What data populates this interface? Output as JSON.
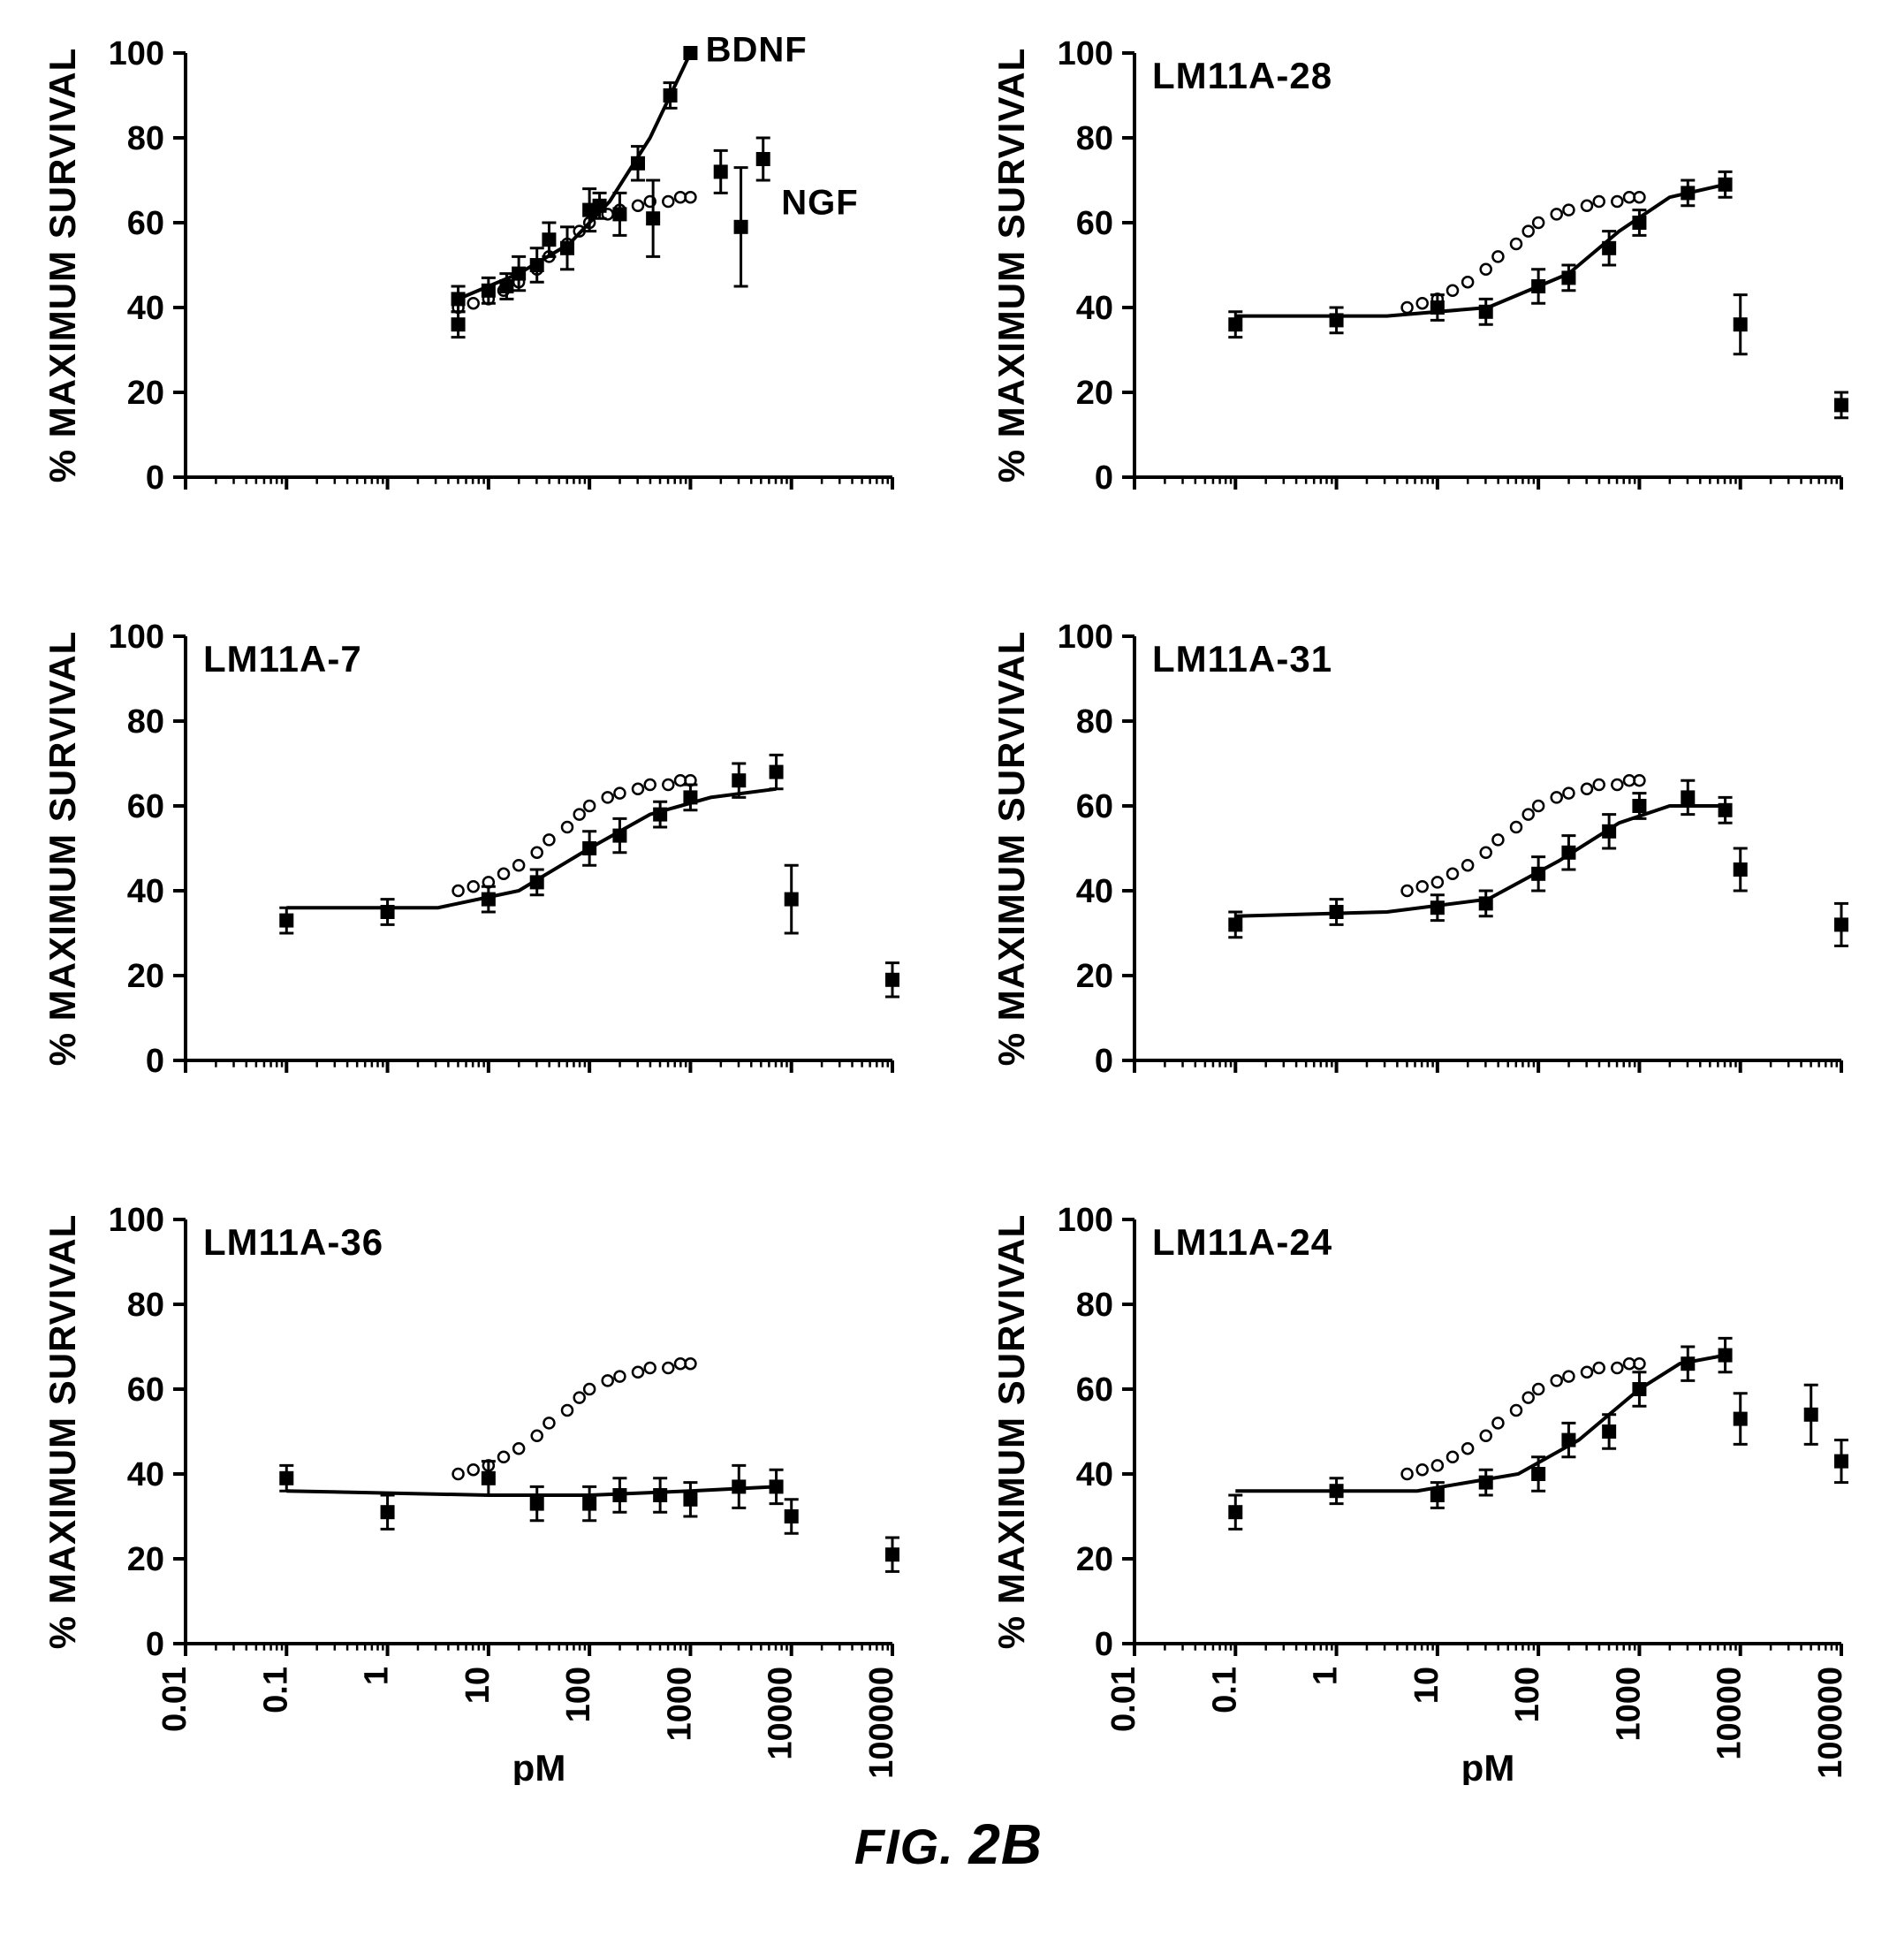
{
  "figure_caption_prefix": "FIG.",
  "figure_caption_num": "2B",
  "global": {
    "background_color": "#ffffff",
    "axis_color": "#000000",
    "axis_width": 4,
    "tick_length": 14,
    "ylabel": "% MAXIMUM SURVIVAL",
    "xlabel": "pM",
    "ylim": [
      0,
      100
    ],
    "yticks": [
      0,
      20,
      40,
      60,
      80,
      100
    ],
    "x_log_min": -2,
    "x_log_max": 5,
    "xticks_log": [
      -2,
      -1,
      0,
      1,
      2,
      3,
      4,
      5
    ],
    "xtick_labels": [
      "0.01",
      "0.1",
      "1",
      "10",
      "100",
      "1000",
      "10000",
      "100000"
    ],
    "marker_fill": "#000000",
    "marker_size": 16,
    "open_marker_stroke": "#000000",
    "open_marker_radius": 6,
    "open_marker_stroke_width": 2.5,
    "errorbar_width": 3,
    "errorbar_cap": 16,
    "line_width": 4,
    "font_color": "#000000"
  },
  "ngf_reference": {
    "comment": "open-circle NGF dose-response overlay shown on every panel",
    "points": [
      {
        "logx": 0.7,
        "y": 40
      },
      {
        "logx": 0.85,
        "y": 41
      },
      {
        "logx": 1.0,
        "y": 42
      },
      {
        "logx": 1.15,
        "y": 44
      },
      {
        "logx": 1.3,
        "y": 46
      },
      {
        "logx": 1.48,
        "y": 49
      },
      {
        "logx": 1.6,
        "y": 52
      },
      {
        "logx": 1.78,
        "y": 55
      },
      {
        "logx": 1.9,
        "y": 58
      },
      {
        "logx": 2.0,
        "y": 60
      },
      {
        "logx": 2.18,
        "y": 62
      },
      {
        "logx": 2.3,
        "y": 63
      },
      {
        "logx": 2.48,
        "y": 64
      },
      {
        "logx": 2.6,
        "y": 65
      },
      {
        "logx": 2.78,
        "y": 65
      },
      {
        "logx": 2.9,
        "y": 66
      },
      {
        "logx": 3.0,
        "y": 66
      }
    ]
  },
  "panels": [
    {
      "id": "bdnf-ngf",
      "title": "",
      "show_xlabels": false,
      "show_xtitle": false,
      "annotations": [
        {
          "text": "BDNF",
          "logx": 3.15,
          "y": 98
        },
        {
          "text": "NGF",
          "logx": 3.9,
          "y": 62
        }
      ],
      "fit": [
        {
          "logx": 0.7,
          "y": 42
        },
        {
          "logx": 1.3,
          "y": 48
        },
        {
          "logx": 1.8,
          "y": 55
        },
        {
          "logx": 2.2,
          "y": 65
        },
        {
          "logx": 2.6,
          "y": 80
        },
        {
          "logx": 2.8,
          "y": 90
        },
        {
          "logx": 3.0,
          "y": 100
        }
      ],
      "data": [
        {
          "logx": 0.7,
          "y": 42,
          "err": 3
        },
        {
          "logx": 0.7,
          "y": 36,
          "err": 3
        },
        {
          "logx": 1.0,
          "y": 44,
          "err": 3
        },
        {
          "logx": 1.18,
          "y": 45,
          "err": 3
        },
        {
          "logx": 1.3,
          "y": 48,
          "err": 4
        },
        {
          "logx": 1.48,
          "y": 50,
          "err": 4
        },
        {
          "logx": 1.6,
          "y": 56,
          "err": 4
        },
        {
          "logx": 1.78,
          "y": 54,
          "err": 5
        },
        {
          "logx": 2.0,
          "y": 63,
          "err": 5
        },
        {
          "logx": 2.1,
          "y": 64,
          "err": 3
        },
        {
          "logx": 2.3,
          "y": 62,
          "err": 5
        },
        {
          "logx": 2.48,
          "y": 74,
          "err": 4
        },
        {
          "logx": 2.63,
          "y": 61,
          "err": 9
        },
        {
          "logx": 2.8,
          "y": 90,
          "err": 3
        },
        {
          "logx": 3.0,
          "y": 100,
          "err": 0
        },
        {
          "logx": 3.3,
          "y": 72,
          "err": 5
        },
        {
          "logx": 3.5,
          "y": 59,
          "err": 14
        },
        {
          "logx": 3.72,
          "y": 75,
          "err": 5
        }
      ]
    },
    {
      "id": "lm11a-28",
      "title": "LM11A-28",
      "show_xlabels": false,
      "show_xtitle": false,
      "fit": [
        {
          "logx": -1.0,
          "y": 38
        },
        {
          "logx": 0.5,
          "y": 38
        },
        {
          "logx": 1.5,
          "y": 40
        },
        {
          "logx": 2.3,
          "y": 48
        },
        {
          "logx": 2.8,
          "y": 58
        },
        {
          "logx": 3.3,
          "y": 66
        },
        {
          "logx": 3.85,
          "y": 69
        }
      ],
      "data": [
        {
          "logx": -1.0,
          "y": 36,
          "err": 3
        },
        {
          "logx": 0.0,
          "y": 37,
          "err": 3
        },
        {
          "logx": 1.0,
          "y": 40,
          "err": 3
        },
        {
          "logx": 1.48,
          "y": 39,
          "err": 3
        },
        {
          "logx": 2.0,
          "y": 45,
          "err": 4
        },
        {
          "logx": 2.3,
          "y": 47,
          "err": 3
        },
        {
          "logx": 2.7,
          "y": 54,
          "err": 4
        },
        {
          "logx": 3.0,
          "y": 60,
          "err": 3
        },
        {
          "logx": 3.48,
          "y": 67,
          "err": 3
        },
        {
          "logx": 3.85,
          "y": 69,
          "err": 3
        },
        {
          "logx": 4.0,
          "y": 36,
          "err": 7
        },
        {
          "logx": 5.0,
          "y": 17,
          "err": 3
        }
      ]
    },
    {
      "id": "lm11a-7",
      "title": "LM11A-7",
      "show_xlabels": false,
      "show_xtitle": false,
      "fit": [
        {
          "logx": -1.0,
          "y": 36
        },
        {
          "logx": 0.5,
          "y": 36
        },
        {
          "logx": 1.3,
          "y": 40
        },
        {
          "logx": 2.0,
          "y": 50
        },
        {
          "logx": 2.6,
          "y": 58
        },
        {
          "logx": 3.2,
          "y": 62
        },
        {
          "logx": 3.85,
          "y": 64
        }
      ],
      "data": [
        {
          "logx": -1.0,
          "y": 33,
          "err": 3
        },
        {
          "logx": 0.0,
          "y": 35,
          "err": 3
        },
        {
          "logx": 1.0,
          "y": 38,
          "err": 3
        },
        {
          "logx": 1.48,
          "y": 42,
          "err": 3
        },
        {
          "logx": 2.0,
          "y": 50,
          "err": 4
        },
        {
          "logx": 2.3,
          "y": 53,
          "err": 4
        },
        {
          "logx": 2.7,
          "y": 58,
          "err": 3
        },
        {
          "logx": 3.0,
          "y": 62,
          "err": 3
        },
        {
          "logx": 3.48,
          "y": 66,
          "err": 4
        },
        {
          "logx": 3.85,
          "y": 68,
          "err": 4
        },
        {
          "logx": 4.0,
          "y": 38,
          "err": 8
        },
        {
          "logx": 5.0,
          "y": 19,
          "err": 4
        }
      ]
    },
    {
      "id": "lm11a-31",
      "title": "LM11A-31",
      "show_xlabels": false,
      "show_xtitle": false,
      "fit": [
        {
          "logx": -1.0,
          "y": 34
        },
        {
          "logx": 0.5,
          "y": 35
        },
        {
          "logx": 1.5,
          "y": 38
        },
        {
          "logx": 2.2,
          "y": 47
        },
        {
          "logx": 2.8,
          "y": 56
        },
        {
          "logx": 3.3,
          "y": 60
        },
        {
          "logx": 3.85,
          "y": 60
        }
      ],
      "data": [
        {
          "logx": -1.0,
          "y": 32,
          "err": 3
        },
        {
          "logx": 0.0,
          "y": 35,
          "err": 3
        },
        {
          "logx": 1.0,
          "y": 36,
          "err": 3
        },
        {
          "logx": 1.48,
          "y": 37,
          "err": 3
        },
        {
          "logx": 2.0,
          "y": 44,
          "err": 4
        },
        {
          "logx": 2.3,
          "y": 49,
          "err": 4
        },
        {
          "logx": 2.7,
          "y": 54,
          "err": 4
        },
        {
          "logx": 3.0,
          "y": 60,
          "err": 3
        },
        {
          "logx": 3.48,
          "y": 62,
          "err": 4
        },
        {
          "logx": 3.85,
          "y": 59,
          "err": 3
        },
        {
          "logx": 4.0,
          "y": 45,
          "err": 5
        },
        {
          "logx": 5.0,
          "y": 32,
          "err": 5
        }
      ]
    },
    {
      "id": "lm11a-36",
      "title": "LM11A-36",
      "show_xlabels": true,
      "show_xtitle": true,
      "fit": [
        {
          "logx": -1.0,
          "y": 36
        },
        {
          "logx": 1.0,
          "y": 35
        },
        {
          "logx": 2.0,
          "y": 35
        },
        {
          "logx": 3.0,
          "y": 36
        },
        {
          "logx": 3.85,
          "y": 37
        }
      ],
      "data": [
        {
          "logx": -1.0,
          "y": 39,
          "err": 3
        },
        {
          "logx": 0.0,
          "y": 31,
          "err": 4
        },
        {
          "logx": 1.0,
          "y": 39,
          "err": 4
        },
        {
          "logx": 1.48,
          "y": 33,
          "err": 4
        },
        {
          "logx": 2.0,
          "y": 33,
          "err": 4
        },
        {
          "logx": 2.3,
          "y": 35,
          "err": 4
        },
        {
          "logx": 2.7,
          "y": 35,
          "err": 4
        },
        {
          "logx": 3.0,
          "y": 34,
          "err": 4
        },
        {
          "logx": 3.48,
          "y": 37,
          "err": 5
        },
        {
          "logx": 3.85,
          "y": 37,
          "err": 4
        },
        {
          "logx": 4.0,
          "y": 30,
          "err": 4
        },
        {
          "logx": 5.0,
          "y": 21,
          "err": 4
        }
      ]
    },
    {
      "id": "lm11a-24",
      "title": "LM11A-24",
      "show_xlabels": true,
      "show_xtitle": true,
      "fit": [
        {
          "logx": -1.0,
          "y": 36
        },
        {
          "logx": 0.8,
          "y": 36
        },
        {
          "logx": 1.8,
          "y": 40
        },
        {
          "logx": 2.4,
          "y": 48
        },
        {
          "logx": 3.0,
          "y": 60
        },
        {
          "logx": 3.4,
          "y": 66
        },
        {
          "logx": 3.85,
          "y": 68
        }
      ],
      "data": [
        {
          "logx": -1.0,
          "y": 31,
          "err": 4
        },
        {
          "logx": 0.0,
          "y": 36,
          "err": 3
        },
        {
          "logx": 1.0,
          "y": 35,
          "err": 3
        },
        {
          "logx": 1.48,
          "y": 38,
          "err": 3
        },
        {
          "logx": 2.0,
          "y": 40,
          "err": 4
        },
        {
          "logx": 2.3,
          "y": 48,
          "err": 4
        },
        {
          "logx": 2.7,
          "y": 50,
          "err": 4
        },
        {
          "logx": 3.0,
          "y": 60,
          "err": 4
        },
        {
          "logx": 3.48,
          "y": 66,
          "err": 4
        },
        {
          "logx": 3.85,
          "y": 68,
          "err": 4
        },
        {
          "logx": 4.0,
          "y": 53,
          "err": 6
        },
        {
          "logx": 4.7,
          "y": 54,
          "err": 7
        },
        {
          "logx": 5.0,
          "y": 43,
          "err": 5
        }
      ]
    }
  ]
}
